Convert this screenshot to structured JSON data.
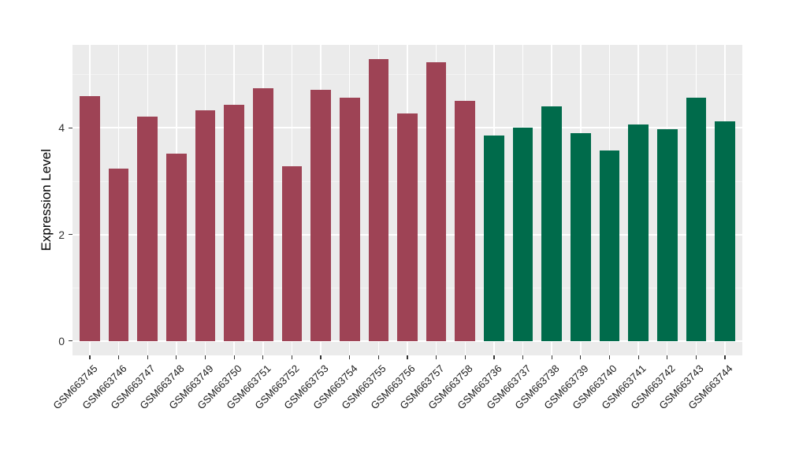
{
  "chart_data": {
    "type": "bar",
    "title": "",
    "xlabel": "",
    "ylabel": "Expression Level",
    "ylim": [
      -0.27,
      5.56
    ],
    "ybreaks": [
      0,
      2,
      4
    ],
    "yminor": [
      1,
      3,
      5
    ],
    "ytick_labels": [
      "0",
      "2",
      "4"
    ],
    "grid": "on",
    "legend": "none",
    "panel_bg": "#EBEBEB",
    "grid_major_color": "#FFFFFF",
    "grid_minor_color": "#F4F4F4",
    "tick_color": "#333333",
    "series": [
      {
        "color": "#9E4355",
        "categories": [
          "GSM663745",
          "GSM663746",
          "GSM663747",
          "GSM663748",
          "GSM663749",
          "GSM663750",
          "GSM663751",
          "GSM663752",
          "GSM663753",
          "GSM663754",
          "GSM663755",
          "GSM663756",
          "GSM663757",
          "GSM663758"
        ],
        "values": [
          4.6,
          3.24,
          4.21,
          3.52,
          4.33,
          4.44,
          4.74,
          3.28,
          4.72,
          4.57,
          5.3,
          4.27,
          5.23,
          4.51
        ]
      },
      {
        "color": "#006B4B",
        "categories": [
          "GSM663736",
          "GSM663737",
          "GSM663738",
          "GSM663739",
          "GSM663740",
          "GSM663741",
          "GSM663742",
          "GSM663743",
          "GSM663744"
        ],
        "values": [
          3.86,
          4.0,
          4.41,
          3.9,
          3.57,
          4.06,
          3.97,
          4.57,
          4.12
        ]
      }
    ]
  }
}
